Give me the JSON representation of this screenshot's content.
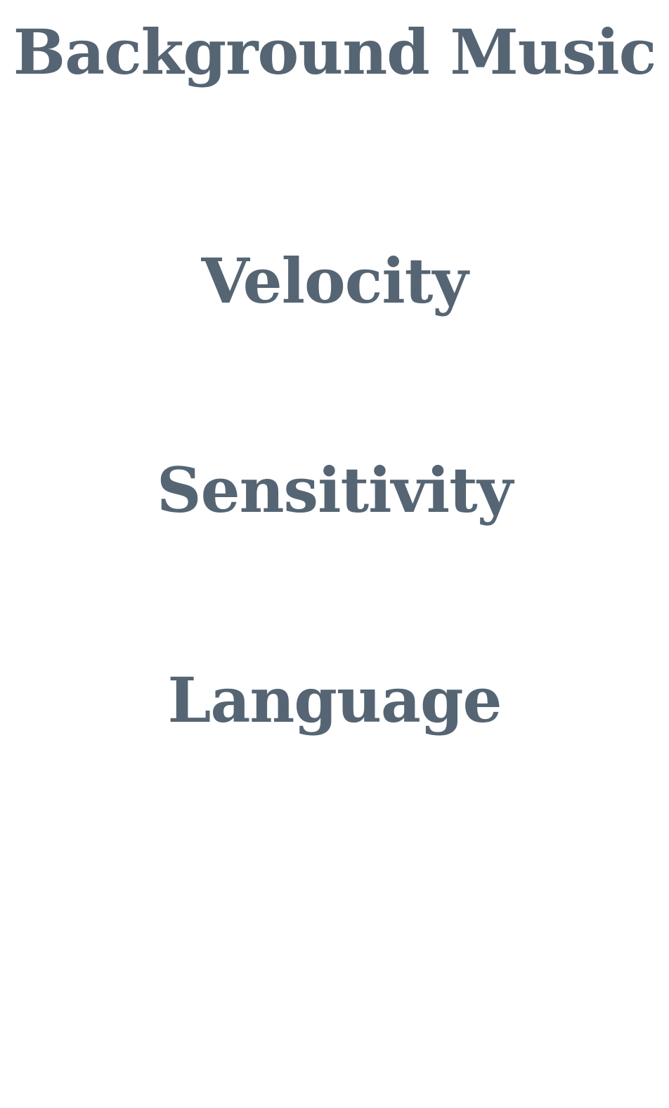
{
  "menu": {
    "items": [
      {
        "label": "Background Music"
      },
      {
        "label": "Velocity"
      },
      {
        "label": "Sensitivity"
      },
      {
        "label": "Language"
      }
    ]
  },
  "colors": {
    "text": "#566573",
    "background": "#ffffff"
  }
}
